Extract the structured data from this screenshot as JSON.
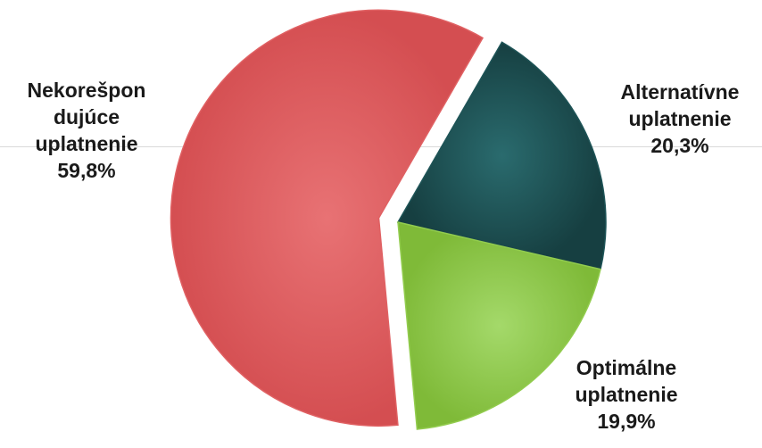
{
  "chart_data": {
    "type": "pie",
    "title": "",
    "slices": [
      {
        "name": "Alternatívne uplatnenie",
        "label_lines": [
          "Alternatívne",
          "uplatnenie"
        ],
        "value": 20.3,
        "value_label": "20,3%",
        "color": "#1e5457"
      },
      {
        "name": "Optimálne uplatnenie",
        "label_lines": [
          "Optimálne",
          "uplatnenie"
        ],
        "value": 19.9,
        "value_label": "19,9%",
        "color": "#92cc4e"
      },
      {
        "name": "Nekorešpondujúce uplatnenie",
        "label_lines": [
          "Nekorešpon",
          "dujúce",
          "uplatnenie"
        ],
        "value": 59.8,
        "value_label": "59,8%",
        "color": "#e06163",
        "exploded": true
      }
    ],
    "legend": "none",
    "start_angle": "top-right wedge begins near 1 o'clock",
    "direction": "clockwise"
  }
}
